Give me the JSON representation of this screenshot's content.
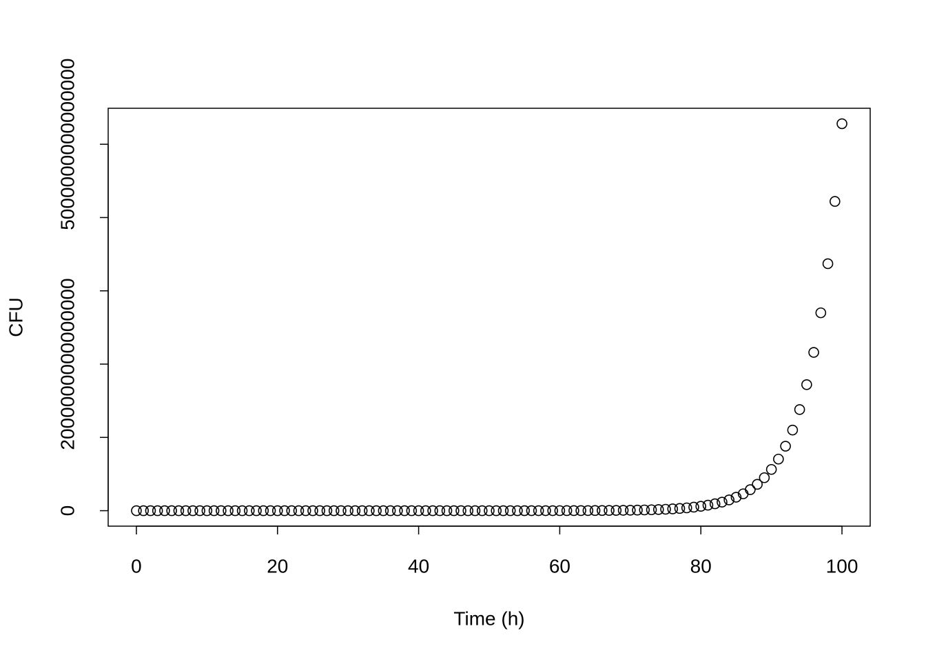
{
  "chart_data": {
    "type": "scatter",
    "x_label": "Time (h)",
    "y_label": "CFU",
    "x": [
      0,
      1,
      2,
      3,
      4,
      5,
      6,
      7,
      8,
      9,
      10,
      11,
      12,
      13,
      14,
      15,
      16,
      17,
      18,
      19,
      20,
      21,
      22,
      23,
      24,
      25,
      26,
      27,
      28,
      29,
      30,
      31,
      32,
      33,
      34,
      35,
      36,
      37,
      38,
      39,
      40,
      41,
      42,
      43,
      44,
      45,
      46,
      47,
      48,
      49,
      50,
      51,
      52,
      53,
      54,
      55,
      56,
      57,
      58,
      59,
      60,
      61,
      62,
      63,
      64,
      65,
      66,
      67,
      68,
      69,
      70,
      71,
      72,
      73,
      74,
      75,
      76,
      77,
      78,
      79,
      80,
      81,
      82,
      83,
      84,
      85,
      86,
      87,
      88,
      89,
      90,
      91,
      92,
      93,
      94,
      95,
      96,
      97,
      98,
      99,
      100
    ],
    "values": [
      1000000.0,
      1250000.0,
      1570000.0,
      1960000.0,
      2450000.0,
      3060000.0,
      3830000.0,
      4790000.0,
      6000000.0,
      7500000.0,
      9380000.0,
      11700000.0,
      14700000.0,
      18400000.0,
      23000000.0,
      28700000.0,
      35900000.0,
      45000000.0,
      56200000.0,
      70400000.0,
      88000000.0,
      110000000.0,
      138000000.0,
      172000000.0,
      215000000.0,
      270000000.0,
      337000000.0,
      422000000.0,
      528000000.0,
      660000000.0,
      826000000.0,
      1030000000.0,
      1290000000.0,
      1620000000.0,
      2020000000.0,
      2530000000.0,
      3160000000.0,
      3960000000.0,
      4950000000.0,
      6190000000.0,
      7750000000.0,
      9690000000.0,
      12100000000.0,
      15200000000.0,
      19000000000.0,
      23700000000.0,
      29700000000.0,
      37100000000.0,
      46400000000.0,
      58100000000.0,
      72700000000.0,
      90900000000.0,
      114000000000.0,
      142000000000.0,
      178000000000.0,
      223000000000.0,
      278000000000.0,
      348000000000.0,
      436000000000.0,
      545000000000.0,
      682000000000.0,
      853000000000.0,
      1070000000000.0,
      1330000000000.0,
      1670000000000.0,
      2090000000000.0,
      2610000000000.0,
      3270000000000.0,
      4090000000000.0,
      5110000000000.0,
      6390000000000.0,
      8000000000000.0,
      10000000000000.0,
      12500000000000.0,
      15600000000000.0,
      19600000000000.0,
      24500000000000.0,
      30600000000000.0,
      38300000000000.0,
      47900000000000.0,
      60000000000000.0,
      75000000000000.0,
      93900000000000.0,
      117000000000000.0,
      147000000000000.0,
      184000000000000.0,
      230000000000000.0,
      287000000000000.0,
      360000000000000.0,
      450000000000000.0,
      563000000000000.0,
      704000000000000.0,
      880000000000000.0,
      1100000000000000.0,
      1380000000000000.0,
      1720000000000000.0,
      2160000000000000.0,
      2700000000000000.0,
      3370000000000000.0,
      4220000000000000.0,
      5280000000000000.0
    ],
    "color": "#000000",
    "xlim": [
      -4,
      104
    ],
    "xticks": [
      0,
      20,
      40,
      60,
      80,
      100
    ],
    "ylim": [
      -211000000000000.0,
      5491000000000000.0
    ],
    "yticks": [
      0,
      1000000000000000.0,
      2000000000000000.0,
      3000000000000000.0,
      4000000000000000.0,
      5000000000000000.0
    ]
  }
}
